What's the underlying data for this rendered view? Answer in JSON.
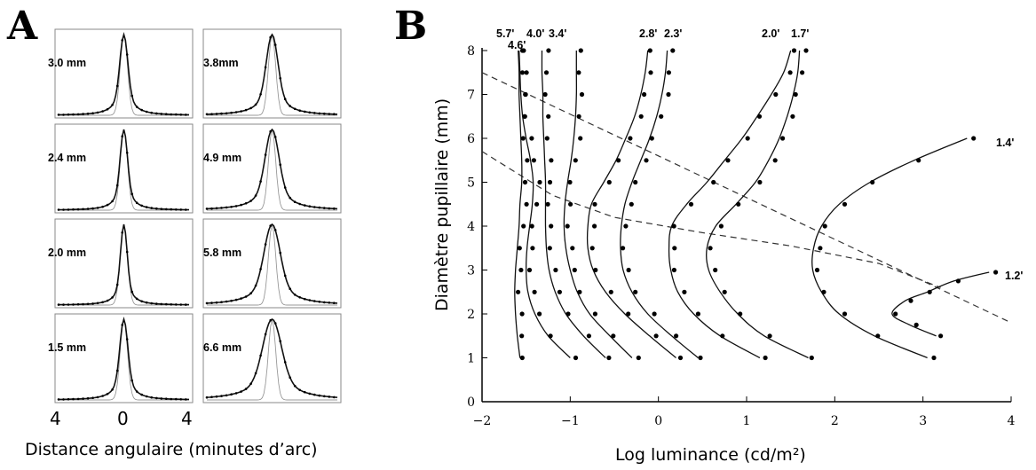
{
  "panel_a": {
    "letter": "A",
    "x_tick_labels": [
      "4",
      "0",
      "4"
    ],
    "x_axis_label": "Distance angulaire (minutes d’arc)",
    "subpanels": [
      {
        "label": "3.0 mm",
        "width": 0.55
      },
      {
        "label": "3.8mm",
        "width": 0.8
      },
      {
        "label": "2.4 mm",
        "width": 0.5
      },
      {
        "label": "4.9 mm",
        "width": 0.95
      },
      {
        "label": "2.0 mm",
        "width": 0.45
      },
      {
        "label": "5.8 mm",
        "width": 1.1
      },
      {
        "label": "1.5 mm",
        "width": 0.55
      },
      {
        "label": "6.6 mm",
        "width": 1.3
      }
    ]
  },
  "panel_b": {
    "letter": "B",
    "x_axis_label": "Log luminance (cd/m²)",
    "y_axis_label": "Diamètre pupillaire (mm)"
  },
  "chart_data": [
    {
      "type": "line",
      "panel": "A",
      "x_tick_labels": [
        "4",
        "0",
        "4"
      ],
      "xlabel": "Distance angulaire (minutes d’arc)",
      "subplots": [
        "3.0 mm",
        "3.8mm",
        "2.4 mm",
        "4.9 mm",
        "2.0 mm",
        "5.8 mm",
        "1.5 mm",
        "6.6 mm"
      ]
    },
    {
      "type": "line",
      "panel": "B",
      "xlabel": "Log luminance (cd/m²)",
      "ylabel": "Diamètre pupillaire (mm)",
      "xlim": [
        -2,
        4
      ],
      "ylim": [
        0,
        8
      ],
      "x_ticks": [
        -2,
        -1,
        0,
        1,
        2,
        3,
        4
      ],
      "y_ticks": [
        0,
        1,
        2,
        3,
        4,
        5,
        6,
        7,
        8
      ],
      "grid": false,
      "series": [
        {
          "name": "5.7'",
          "x": [
            -1.57,
            -1.6,
            -1.62,
            -1.63,
            -1.62,
            -1.6,
            -1.58,
            -1.57,
            -1.55,
            -1.55,
            -1.56,
            -1.57,
            -1.58,
            -1.58,
            -1.59
          ],
          "y": [
            1.0,
            1.5,
            2.0,
            2.5,
            3.0,
            3.5,
            4.0,
            4.5,
            5.0,
            5.5,
            6.0,
            6.5,
            7.0,
            7.5,
            8.0
          ]
        },
        {
          "name": "4.6'",
          "x": [
            -1.0,
            -1.25,
            -1.4,
            -1.48,
            -1.5,
            -1.49,
            -1.46,
            -1.43,
            -1.42,
            -1.45,
            -1.5,
            -1.54,
            -1.56,
            -1.57,
            -1.58
          ],
          "y": [
            1.0,
            1.5,
            2.0,
            2.5,
            3.0,
            3.5,
            4.0,
            4.5,
            5.0,
            5.5,
            6.0,
            6.5,
            7.0,
            7.5,
            8.0
          ]
        },
        {
          "name": "4.0'",
          "x": [
            -0.6,
            -0.85,
            -1.05,
            -1.17,
            -1.24,
            -1.27,
            -1.28,
            -1.28,
            -1.28,
            -1.29,
            -1.3,
            -1.31,
            -1.31,
            -1.32,
            -1.32
          ],
          "y": [
            1.0,
            1.5,
            2.0,
            2.5,
            3.0,
            3.5,
            4.0,
            4.5,
            5.0,
            5.5,
            6.0,
            6.5,
            7.0,
            7.5,
            8.0
          ]
        },
        {
          "name": "3.4'",
          "x": [
            -0.3,
            -0.55,
            -0.78,
            -0.92,
            -1.0,
            -1.05,
            -1.07,
            -1.06,
            -1.03,
            -0.99,
            -0.96,
            -0.94,
            -0.93,
            -0.93,
            -0.93
          ],
          "y": [
            1.0,
            1.5,
            2.0,
            2.5,
            3.0,
            3.5,
            4.0,
            4.5,
            5.0,
            5.5,
            6.0,
            6.5,
            7.0,
            7.5,
            8.0
          ]
        },
        {
          "name": "2.8'",
          "x": [
            0.2,
            -0.1,
            -0.38,
            -0.6,
            -0.74,
            -0.8,
            -0.8,
            -0.76,
            -0.62,
            -0.48,
            -0.37,
            -0.27,
            -0.2,
            -0.15,
            -0.12
          ],
          "y": [
            1.0,
            1.5,
            2.0,
            2.5,
            3.0,
            3.5,
            4.0,
            4.5,
            5.0,
            5.5,
            6.0,
            6.5,
            7.0,
            7.5,
            8.0
          ]
        },
        {
          "name": "2.3'",
          "x": [
            0.45,
            0.15,
            -0.12,
            -0.3,
            -0.4,
            -0.43,
            -0.42,
            -0.38,
            -0.3,
            -0.2,
            -0.1,
            -0.02,
            0.04,
            0.08,
            0.1
          ],
          "y": [
            1.0,
            1.5,
            2.0,
            2.5,
            3.0,
            3.5,
            4.0,
            4.5,
            5.0,
            5.5,
            6.0,
            6.5,
            7.0,
            7.5,
            8.0
          ]
        },
        {
          "name": "2.0'",
          "x": [
            1.15,
            0.7,
            0.4,
            0.22,
            0.14,
            0.12,
            0.15,
            0.32,
            0.55,
            0.75,
            0.95,
            1.12,
            1.28,
            1.42,
            1.5
          ],
          "y": [
            1.0,
            1.5,
            2.0,
            2.5,
            3.0,
            3.5,
            4.0,
            4.5,
            5.0,
            5.5,
            6.0,
            6.5,
            7.0,
            7.5,
            8.0
          ]
        },
        {
          "name": "1.7'",
          "x": [
            1.7,
            1.2,
            0.9,
            0.7,
            0.57,
            0.55,
            0.65,
            0.88,
            1.1,
            1.25,
            1.37,
            1.46,
            1.53,
            1.58,
            1.6
          ],
          "y": [
            1.0,
            1.5,
            2.0,
            2.5,
            3.0,
            3.5,
            4.0,
            4.5,
            5.0,
            5.5,
            6.0,
            6.5,
            7.0,
            7.5,
            8.0
          ]
        },
        {
          "name": "1.4'",
          "x": [
            3.05,
            2.45,
            2.05,
            1.85,
            1.75,
            1.76,
            1.85,
            2.05,
            2.4,
            2.9,
            3.5
          ],
          "y": [
            1.0,
            1.5,
            2.0,
            2.5,
            3.0,
            3.5,
            4.0,
            4.5,
            5.0,
            5.5,
            6.0
          ]
        },
        {
          "name": "1.2'",
          "x": [
            3.15,
            2.85,
            2.65,
            2.8,
            3.05,
            3.35,
            3.75
          ],
          "y": [
            1.5,
            1.75,
            2.0,
            2.3,
            2.5,
            2.75,
            2.95
          ]
        }
      ],
      "dashed_lines": [
        {
          "x": [
            -2,
            4
          ],
          "y": [
            7.5,
            1.8
          ]
        },
        {
          "x": [
            -2,
            -1.2,
            -0.5,
            0.5,
            1.5,
            2.5,
            3.2
          ],
          "y": [
            5.7,
            4.7,
            4.2,
            3.85,
            3.55,
            3.15,
            2.6
          ]
        }
      ]
    }
  ]
}
